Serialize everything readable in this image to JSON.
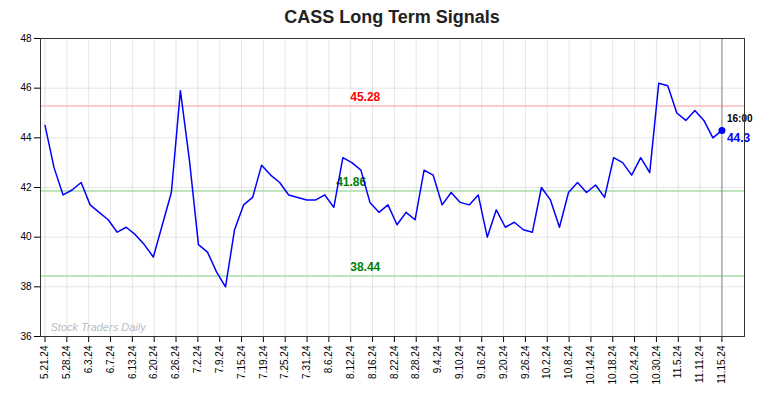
{
  "chart_data": {
    "type": "line",
    "title": "CASS Long Term Signals",
    "x": [
      0,
      1,
      2,
      3,
      4,
      5,
      6,
      7,
      8,
      9,
      10,
      11,
      12,
      13,
      14,
      15,
      16,
      17,
      18,
      19,
      20,
      21,
      22,
      23,
      24,
      25,
      26,
      27,
      28,
      29,
      30,
      31,
      32,
      33,
      34,
      35,
      36,
      37,
      38,
      39,
      40,
      41,
      42,
      43,
      44,
      45,
      46,
      47,
      48,
      49,
      50,
      51,
      52,
      53,
      54,
      55,
      56,
      57,
      58,
      59,
      60,
      61,
      62,
      63,
      64,
      65,
      66,
      67,
      68,
      69,
      70,
      71,
      72,
      73,
      74,
      75
    ],
    "values": [
      44.5,
      42.8,
      41.7,
      41.9,
      42.2,
      41.3,
      41.0,
      40.7,
      40.2,
      40.4,
      40.1,
      39.7,
      39.2,
      40.5,
      41.8,
      45.9,
      43.1,
      39.7,
      39.4,
      38.6,
      38.0,
      40.3,
      41.3,
      41.6,
      42.9,
      42.5,
      42.2,
      41.7,
      41.6,
      41.5,
      41.5,
      41.7,
      41.2,
      43.2,
      43.0,
      42.7,
      41.4,
      41.0,
      41.3,
      40.5,
      41.0,
      40.7,
      42.7,
      42.5,
      41.3,
      41.8,
      41.4,
      41.3,
      41.7,
      40.0,
      41.1,
      40.4,
      40.6,
      40.3,
      40.2,
      42.0,
      41.5,
      40.4,
      41.8,
      42.2,
      41.8,
      42.1,
      41.6,
      43.2,
      43.0,
      42.5,
      43.2,
      42.6,
      46.2,
      46.1,
      45.0,
      44.7,
      45.1,
      44.7,
      44.0,
      44.3
    ],
    "color": "blue",
    "xlim": [
      -0.5,
      77.5
    ],
    "xticks": [
      {
        "value": 0,
        "label": "5.21.24"
      },
      {
        "value": 2.4193548387,
        "label": "5.28.24"
      },
      {
        "value": 4.8387096774,
        "label": "6.3.24"
      },
      {
        "value": 7.2580645161,
        "label": "6.7.24"
      },
      {
        "value": 9.6774193548,
        "label": "6.13.24"
      },
      {
        "value": 12.0967741935,
        "label": "6.20.24"
      },
      {
        "value": 14.5161290323,
        "label": "6.26.24"
      },
      {
        "value": 16.935483871,
        "label": "7.2.24"
      },
      {
        "value": 19.3548387097,
        "label": "7.9.24"
      },
      {
        "value": 21.7741935484,
        "label": "7.15.24"
      },
      {
        "value": 24.1935483871,
        "label": "7.19.24"
      },
      {
        "value": 26.6129032258,
        "label": "7.25.24"
      },
      {
        "value": 29.0322580645,
        "label": "7.31.24"
      },
      {
        "value": 31.4516129032,
        "label": "8.6.24"
      },
      {
        "value": 33.8709677419,
        "label": "8.12.24"
      },
      {
        "value": 36.2903225806,
        "label": "8.16.24"
      },
      {
        "value": 38.7096774194,
        "label": "8.22.24"
      },
      {
        "value": 41.1290322581,
        "label": "8.28.24"
      },
      {
        "value": 43.5483870968,
        "label": "9.4.24"
      },
      {
        "value": 45.9677419355,
        "label": "9.10.24"
      },
      {
        "value": 48.3870967742,
        "label": "9.16.24"
      },
      {
        "value": 50.8064516129,
        "label": "9.20.24"
      },
      {
        "value": 53.2258064516,
        "label": "9.26.24"
      },
      {
        "value": 55.6451612903,
        "label": "10.2.24"
      },
      {
        "value": 58.064516129,
        "label": "10.8.24"
      },
      {
        "value": 60.4838709677,
        "label": "10.14.24"
      },
      {
        "value": 62.9032258065,
        "label": "10.18.24"
      },
      {
        "value": 65.3225806452,
        "label": "10.24.24"
      },
      {
        "value": 67.7419354839,
        "label": "10.30.24"
      },
      {
        "value": 70.1612903226,
        "label": "11.5.24"
      },
      {
        "value": 72.5806451613,
        "label": "11.11.24"
      },
      {
        "value": 75,
        "label": "11.15.24"
      }
    ],
    "ylim": [
      36,
      48
    ],
    "yticks": [
      36,
      38,
      40,
      42,
      44,
      46,
      48
    ],
    "grid": true,
    "reference_lines": [
      {
        "value": 45.28,
        "color": "#ffbbbb",
        "label": "45.28",
        "label_color": "red"
      },
      {
        "value": 41.86,
        "color": "#aaddaa",
        "label": "41.86",
        "label_color": "green"
      },
      {
        "value": 38.44,
        "color": "#aaddaa",
        "label": "38.44",
        "label_color": "green"
      }
    ],
    "end_marker": {
      "label": "16:00",
      "value": 44.3,
      "value_color": "blue",
      "line_color": "#888888"
    },
    "watermark": {
      "text": "Stock Traders Daily",
      "color": "#bbbbbb"
    }
  }
}
